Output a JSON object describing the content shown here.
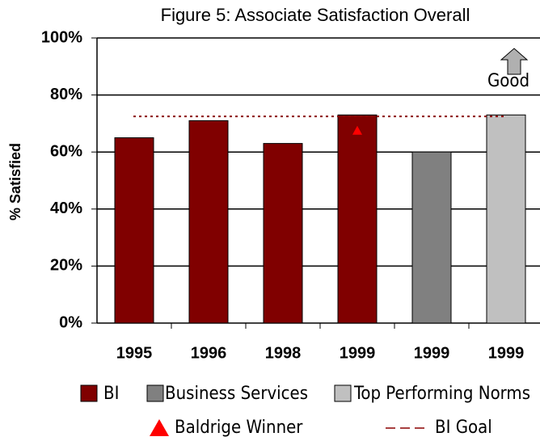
{
  "chart_data": {
    "type": "bar",
    "title": "Figure 5: Associate Satisfaction Overall",
    "y_label": "% Satisfied",
    "categories": [
      "1995",
      "1996",
      "1998",
      "1999",
      "1999",
      "1999"
    ],
    "series": [
      {
        "name": "BI",
        "color": "#800000",
        "values": [
          65,
          71,
          63,
          73,
          null,
          null
        ]
      },
      {
        "name": "Business Services",
        "color": "#808080",
        "values": [
          null,
          null,
          null,
          null,
          60,
          null
        ]
      },
      {
        "name": "Top Performing Norms",
        "color": "#c0c0c0",
        "values": [
          null,
          null,
          null,
          null,
          null,
          73
        ]
      }
    ],
    "marker": {
      "name": "Baldrige Winner",
      "color": "#ff0000",
      "values": [
        null,
        null,
        null,
        67.5,
        null,
        null
      ]
    },
    "goal": {
      "name": "BI Goal",
      "color": "#8b0000",
      "value": 72.5
    },
    "annotation": "Good",
    "ylim": [
      0,
      100
    ],
    "yticks": [
      {
        "value": 0,
        "label": "0%"
      },
      {
        "value": 20,
        "label": "20%"
      },
      {
        "value": 40,
        "label": "40%"
      },
      {
        "value": 60,
        "label": "60%"
      },
      {
        "value": 80,
        "label": "80%"
      },
      {
        "value": 100,
        "label": "100%"
      }
    ],
    "grid": true
  }
}
